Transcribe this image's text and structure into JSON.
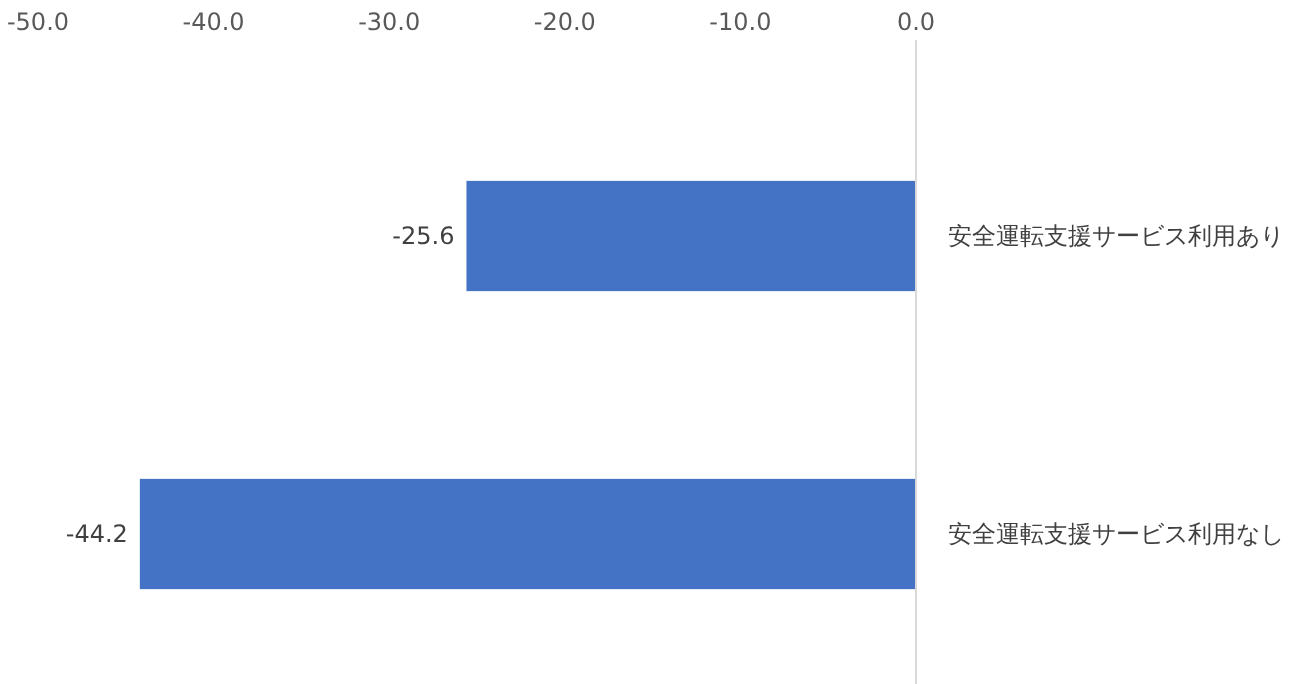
{
  "chart_data": {
    "type": "bar",
    "orientation": "horizontal",
    "categories": [
      "安全運転支援サービス利用あり",
      "安全運転支援サービス利用なし"
    ],
    "values": [
      -25.6,
      -44.2
    ],
    "color": "#4472c4",
    "data_labels": true,
    "grid": false,
    "xlim": [
      -50,
      0
    ],
    "xticks": [
      {
        "value": -50,
        "label": "-50.0"
      },
      {
        "value": -40,
        "label": "-40.0"
      },
      {
        "value": -30,
        "label": "-30.0"
      },
      {
        "value": -20,
        "label": "-20.0"
      },
      {
        "value": -10,
        "label": "-10.0"
      },
      {
        "value": 0,
        "label": "0.0"
      }
    ]
  }
}
